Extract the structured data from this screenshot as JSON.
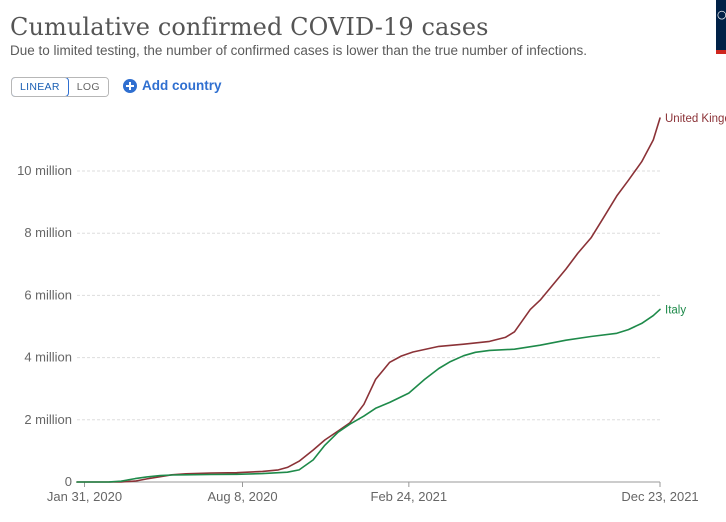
{
  "header": {
    "title": "Cumulative confirmed COVID-19 cases",
    "subtitle": "Due to limited testing, the number of confirmed cases is lower than the true number of infections."
  },
  "controls": {
    "scale_options": [
      "LINEAR",
      "LOG"
    ],
    "active_scale": "LINEAR",
    "add_country_label": "Add country",
    "add_icon": "plus-circle-icon"
  },
  "logo": {
    "icon": "our-world-in-data-logo",
    "bg_color": "#002147",
    "accent_color": "#ce261e"
  },
  "colors": {
    "United Kingdom": "#8b3237",
    "Italy": "#1e8a4a",
    "accent": "#2f6fd0"
  },
  "chart_data": {
    "type": "line",
    "title": "Cumulative confirmed COVID-19 cases",
    "subtitle": "Due to limited testing, the number of confirmed cases is lower than the true number of infections.",
    "xlabel": "",
    "ylabel": "",
    "x_type": "date",
    "xlim": [
      "2020-01-22",
      "2021-12-23"
    ],
    "ylim": [
      0,
      11500000
    ],
    "y_ticks": [
      0,
      2000000,
      4000000,
      6000000,
      8000000,
      10000000
    ],
    "y_tick_labels": [
      "0",
      "2 million",
      "4 million",
      "6 million",
      "8 million",
      "10 million"
    ],
    "x_ticks": [
      "2020-01-31",
      "2020-08-08",
      "2021-02-24",
      "2021-12-23"
    ],
    "x_tick_labels": [
      "Jan 31, 2020",
      "Aug 8, 2020",
      "Feb 24, 2021",
      "Dec 23, 2021"
    ],
    "grid": "horizontal dashed",
    "legend": "end-of-line labels",
    "series": [
      {
        "name": "United Kingdom",
        "color": "#8b3237",
        "points": [
          [
            "2020-01-22",
            0
          ],
          [
            "2020-03-01",
            0
          ],
          [
            "2020-03-15",
            2000
          ],
          [
            "2020-04-01",
            30000
          ],
          [
            "2020-04-15",
            100000
          ],
          [
            "2020-05-01",
            170000
          ],
          [
            "2020-05-15",
            230000
          ],
          [
            "2020-06-01",
            265000
          ],
          [
            "2020-07-01",
            285000
          ],
          [
            "2020-08-01",
            300000
          ],
          [
            "2020-09-01",
            340000
          ],
          [
            "2020-09-20",
            390000
          ],
          [
            "2020-10-01",
            470000
          ],
          [
            "2020-10-15",
            670000
          ],
          [
            "2020-11-01",
            1030000
          ],
          [
            "2020-11-15",
            1350000
          ],
          [
            "2020-12-01",
            1640000
          ],
          [
            "2020-12-15",
            1900000
          ],
          [
            "2021-01-01",
            2500000
          ],
          [
            "2021-01-15",
            3300000
          ],
          [
            "2021-02-01",
            3850000
          ],
          [
            "2021-02-15",
            4050000
          ],
          [
            "2021-03-01",
            4180000
          ],
          [
            "2021-04-01",
            4360000
          ],
          [
            "2021-05-01",
            4430000
          ],
          [
            "2021-06-01",
            4520000
          ],
          [
            "2021-06-20",
            4650000
          ],
          [
            "2021-07-01",
            4830000
          ],
          [
            "2021-07-20",
            5550000
          ],
          [
            "2021-08-01",
            5850000
          ],
          [
            "2021-09-01",
            6850000
          ],
          [
            "2021-09-15",
            7350000
          ],
          [
            "2021-10-01",
            7850000
          ],
          [
            "2021-10-15",
            8450000
          ],
          [
            "2021-11-01",
            9200000
          ],
          [
            "2021-11-15",
            9700000
          ],
          [
            "2021-12-01",
            10300000
          ],
          [
            "2021-12-15",
            11000000
          ],
          [
            "2021-12-23",
            11700000
          ]
        ]
      },
      {
        "name": "Italy",
        "color": "#1e8a4a",
        "points": [
          [
            "2020-01-22",
            0
          ],
          [
            "2020-02-20",
            0
          ],
          [
            "2020-03-01",
            2000
          ],
          [
            "2020-03-15",
            25000
          ],
          [
            "2020-04-01",
            110000
          ],
          [
            "2020-04-15",
            165000
          ],
          [
            "2020-05-01",
            205000
          ],
          [
            "2020-05-15",
            224000
          ],
          [
            "2020-06-01",
            233000
          ],
          [
            "2020-07-01",
            241000
          ],
          [
            "2020-08-01",
            248000
          ],
          [
            "2020-09-01",
            270000
          ],
          [
            "2020-10-01",
            315000
          ],
          [
            "2020-10-15",
            390000
          ],
          [
            "2020-11-01",
            710000
          ],
          [
            "2020-11-15",
            1180000
          ],
          [
            "2020-12-01",
            1600000
          ],
          [
            "2020-12-15",
            1860000
          ],
          [
            "2021-01-01",
            2120000
          ],
          [
            "2021-01-15",
            2370000
          ],
          [
            "2021-02-01",
            2560000
          ],
          [
            "2021-02-24",
            2860000
          ],
          [
            "2021-03-15",
            3300000
          ],
          [
            "2021-04-01",
            3650000
          ],
          [
            "2021-04-15",
            3870000
          ],
          [
            "2021-05-01",
            4060000
          ],
          [
            "2021-05-15",
            4170000
          ],
          [
            "2021-06-01",
            4230000
          ],
          [
            "2021-07-01",
            4270000
          ],
          [
            "2021-08-01",
            4400000
          ],
          [
            "2021-09-01",
            4560000
          ],
          [
            "2021-10-01",
            4680000
          ],
          [
            "2021-11-01",
            4780000
          ],
          [
            "2021-11-15",
            4900000
          ],
          [
            "2021-12-01",
            5100000
          ],
          [
            "2021-12-15",
            5350000
          ],
          [
            "2021-12-23",
            5550000
          ]
        ]
      }
    ]
  }
}
